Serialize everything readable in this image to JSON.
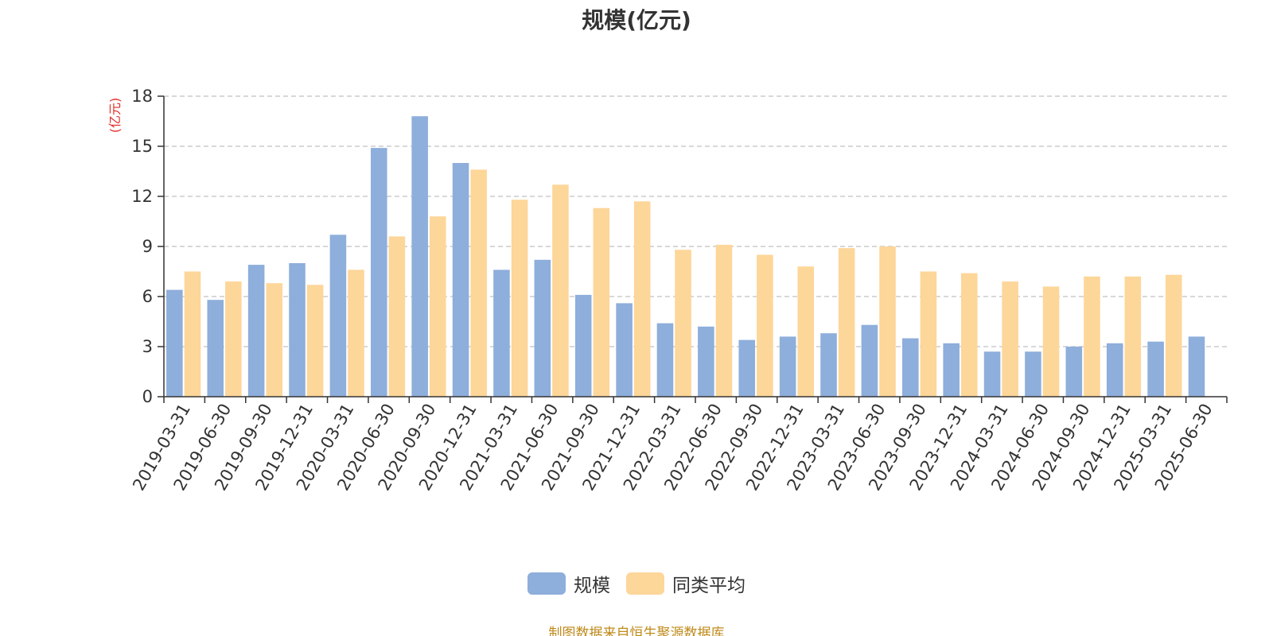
{
  "title": "规模(亿元)",
  "source": "制图数据来自恒生聚源数据库",
  "chart_data": {
    "type": "bar",
    "title": "规模(亿元)",
    "ylabel": "(亿元)",
    "xlabel": "",
    "ylim": [
      0,
      18
    ],
    "yticks": [
      0,
      3,
      6,
      9,
      12,
      15,
      18
    ],
    "grid": true,
    "legend_position": "bottom",
    "categories": [
      "2019-03-31",
      "2019-06-30",
      "2019-09-30",
      "2019-12-31",
      "2020-03-31",
      "2020-06-30",
      "2020-09-30",
      "2020-12-31",
      "2021-03-31",
      "2021-06-30",
      "2021-09-30",
      "2021-12-31",
      "2022-03-31",
      "2022-06-30",
      "2022-09-30",
      "2022-12-31",
      "2023-03-31",
      "2023-06-30",
      "2023-09-30",
      "2023-12-31",
      "2024-03-31",
      "2024-06-30",
      "2024-09-30",
      "2024-12-31",
      "2025-03-31",
      "2025-06-30"
    ],
    "series": [
      {
        "name": "规模",
        "color": "#8eaedb",
        "values": [
          6.4,
          5.8,
          7.9,
          8.0,
          9.7,
          14.9,
          16.8,
          14.0,
          7.6,
          8.2,
          6.1,
          5.6,
          4.4,
          4.2,
          3.4,
          3.6,
          3.8,
          4.3,
          3.5,
          3.2,
          2.7,
          2.7,
          3.0,
          3.2,
          3.3,
          3.6
        ]
      },
      {
        "name": "同类平均",
        "color": "#fdd699",
        "values": [
          7.5,
          6.9,
          6.8,
          6.7,
          7.6,
          9.6,
          10.8,
          13.6,
          11.8,
          12.7,
          11.3,
          11.7,
          8.8,
          9.1,
          8.5,
          7.8,
          8.9,
          9.0,
          7.5,
          7.4,
          6.9,
          6.6,
          7.2,
          7.2,
          7.3,
          null
        ]
      }
    ]
  }
}
